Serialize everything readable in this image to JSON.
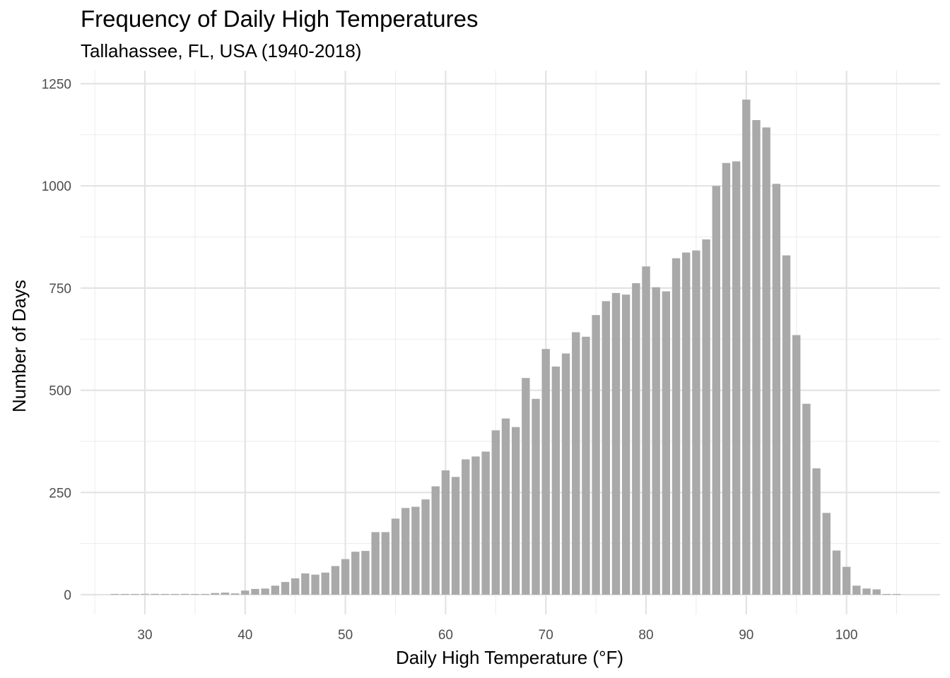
{
  "chart_data": {
    "type": "bar",
    "title": "Frequency of Daily High Temperatures",
    "subtitle": "Tallahassee, FL, USA (1940-2018)",
    "xlabel": "Daily High Temperature (°F)",
    "ylabel": "Number of Days",
    "xlim": [
      25,
      105
    ],
    "ylim": [
      0,
      1250
    ],
    "x_ticks": [
      30,
      40,
      50,
      60,
      70,
      80,
      90,
      100
    ],
    "y_ticks": [
      0,
      250,
      500,
      750,
      1000,
      1250
    ],
    "grid": true,
    "bar_color": "#a9a9a9",
    "x": [
      27,
      28,
      29,
      30,
      31,
      32,
      33,
      34,
      35,
      36,
      37,
      38,
      39,
      40,
      41,
      42,
      43,
      44,
      45,
      46,
      47,
      48,
      49,
      50,
      51,
      52,
      53,
      54,
      55,
      56,
      57,
      58,
      59,
      60,
      61,
      62,
      63,
      64,
      65,
      66,
      67,
      68,
      69,
      70,
      71,
      72,
      73,
      74,
      75,
      76,
      77,
      78,
      79,
      80,
      81,
      82,
      83,
      84,
      85,
      86,
      87,
      88,
      89,
      90,
      91,
      92,
      93,
      94,
      95,
      96,
      97,
      98,
      99,
      100,
      101,
      102,
      103,
      104,
      105
    ],
    "values": [
      1,
      1,
      1,
      2,
      2,
      1,
      1,
      2,
      1,
      1,
      4,
      5,
      3,
      10,
      14,
      15,
      22,
      31,
      40,
      52,
      49,
      54,
      70,
      87,
      105,
      107,
      153,
      153,
      186,
      212,
      215,
      233,
      265,
      304,
      288,
      331,
      338,
      350,
      402,
      431,
      410,
      530,
      479,
      601,
      558,
      590,
      642,
      631,
      684,
      718,
      738,
      734,
      762,
      803,
      752,
      742,
      823,
      837,
      842,
      869,
      1000,
      1056,
      1060,
      1211,
      1161,
      1143,
      1005,
      830,
      635,
      467,
      309,
      200,
      108,
      68,
      22,
      15,
      13,
      1,
      1
    ]
  }
}
